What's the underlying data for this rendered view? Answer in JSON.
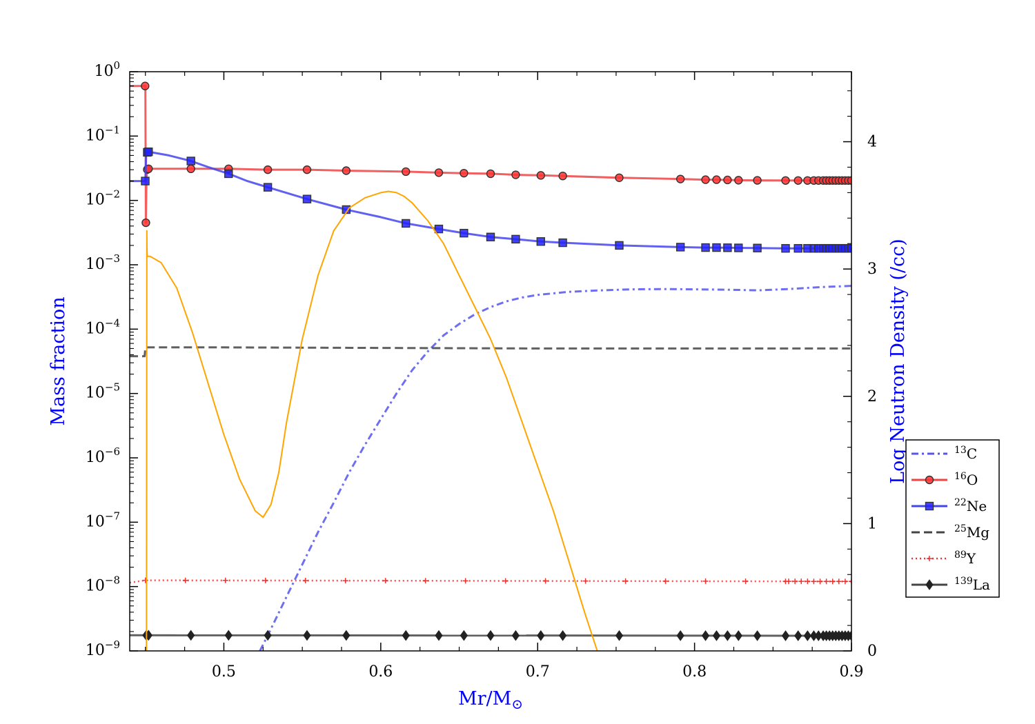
{
  "chart_data": {
    "type": "line",
    "xlabel": "Mr/M",
    "xlabel_symbol": "⊙",
    "ylabel": "Mass fraction",
    "y2label": "Log Neutron Density (/cc)",
    "xlim": [
      0.44,
      0.9
    ],
    "ylim": [
      1e-09,
      1
    ],
    "yscale": "log",
    "y2lim": [
      0,
      4.55
    ],
    "x_ticks": [
      "0.5",
      "0.6",
      "0.7",
      "0.8",
      "0.9"
    ],
    "y_ticks": [
      {
        "base": "10",
        "exp": "0"
      },
      {
        "base": "10",
        "exp": "−1"
      },
      {
        "base": "10",
        "exp": "−2"
      },
      {
        "base": "10",
        "exp": "−3"
      },
      {
        "base": "10",
        "exp": "−4"
      },
      {
        "base": "10",
        "exp": "−5"
      },
      {
        "base": "10",
        "exp": "−6"
      },
      {
        "base": "10",
        "exp": "−7"
      },
      {
        "base": "10",
        "exp": "−8"
      },
      {
        "base": "10",
        "exp": "−9"
      }
    ],
    "y2_ticks": [
      "0",
      "1",
      "2",
      "3",
      "4"
    ],
    "legend_position": "right",
    "colors": {
      "axis_title": "#0000ff",
      "c13": "#5555ee",
      "o16": "#ee4444",
      "ne22": "#4444ee",
      "mg25": "#444444",
      "y89": "#ee3333",
      "la139": "#444444",
      "neutron": "#ffa500"
    },
    "marker_x": [
      0.4512,
      0.452,
      0.479,
      0.503,
      0.528,
      0.553,
      0.578,
      0.616,
      0.637,
      0.653,
      0.67,
      0.686,
      0.702,
      0.716,
      0.752,
      0.791,
      0.807,
      0.814,
      0.821,
      0.828,
      0.84,
      0.858,
      0.866,
      0.872,
      0.876,
      0.879,
      0.882,
      0.884,
      0.886,
      0.888,
      0.89,
      0.892,
      0.894,
      0.896,
      0.898,
      0.9
    ],
    "series": [
      {
        "name": "13",
        "element": "C",
        "style": "dashdot",
        "axis": "left",
        "x": [
          0.523,
          0.53,
          0.54,
          0.55,
          0.56,
          0.57,
          0.58,
          0.59,
          0.6,
          0.61,
          0.62,
          0.63,
          0.64,
          0.65,
          0.66,
          0.67,
          0.68,
          0.69,
          0.7,
          0.72,
          0.74,
          0.76,
          0.78,
          0.8,
          0.82,
          0.84,
          0.86,
          0.88,
          0.9
        ],
        "y": [
          1e-09,
          2.2e-09,
          7e-09,
          2.2e-08,
          7e-08,
          2e-07,
          6e-07,
          1.6e-06,
          4e-06,
          1e-05,
          2.3e-05,
          4.5e-05,
          8e-05,
          0.00012,
          0.00017,
          0.00022,
          0.00027,
          0.00031,
          0.00034,
          0.00038,
          0.0004,
          0.000415,
          0.00042,
          0.000415,
          0.00041,
          0.0004,
          0.00042,
          0.00045,
          0.00047
        ]
      },
      {
        "name": "16",
        "element": "O",
        "style": "solid-circle",
        "axis": "left",
        "x": [
          0.44,
          0.4498,
          0.4499,
          0.45,
          0.4503,
          0.4507,
          0.451,
          0.452,
          0.479,
          0.503,
          0.528,
          0.553,
          0.578,
          0.616,
          0.637,
          0.653,
          0.67,
          0.686,
          0.702,
          0.716,
          0.752,
          0.791,
          0.807,
          0.814,
          0.821,
          0.828,
          0.84,
          0.858,
          0.866,
          0.872,
          0.876,
          0.879,
          0.882,
          0.884,
          0.886,
          0.888,
          0.89,
          0.892,
          0.894,
          0.896,
          0.898,
          0.9
        ],
        "y": [
          0.6,
          0.6,
          0.6,
          0.6,
          0.0045,
          0.02,
          0.03,
          0.031,
          0.031,
          0.031,
          0.03,
          0.03,
          0.029,
          0.028,
          0.027,
          0.0265,
          0.026,
          0.025,
          0.0245,
          0.024,
          0.0225,
          0.0215,
          0.021,
          0.021,
          0.0208,
          0.0206,
          0.0205,
          0.0204,
          0.0204,
          0.0204,
          0.0204,
          0.0204,
          0.0204,
          0.0204,
          0.0204,
          0.0204,
          0.0204,
          0.0204,
          0.0204,
          0.0204,
          0.0204,
          0.0204
        ]
      },
      {
        "name": "22",
        "element": "Ne",
        "style": "solid-square",
        "axis": "left",
        "x": [
          0.44,
          0.45,
          0.4505,
          0.452,
          0.465,
          0.479,
          0.49,
          0.503,
          0.515,
          0.528,
          0.553,
          0.578,
          0.6,
          0.616,
          0.637,
          0.653,
          0.67,
          0.686,
          0.702,
          0.716,
          0.752,
          0.791,
          0.807,
          0.814,
          0.821,
          0.828,
          0.84,
          0.858,
          0.866,
          0.872,
          0.876,
          0.879,
          0.882,
          0.884,
          0.886,
          0.888,
          0.89,
          0.892,
          0.894,
          0.896,
          0.898,
          0.9
        ],
        "y": [
          0.02,
          0.02,
          0.055,
          0.057,
          0.05,
          0.041,
          0.033,
          0.026,
          0.02,
          0.016,
          0.0105,
          0.0072,
          0.0055,
          0.0044,
          0.0036,
          0.0031,
          0.0027,
          0.0025,
          0.0023,
          0.0022,
          0.002,
          0.00188,
          0.00185,
          0.00185,
          0.00184,
          0.00183,
          0.00182,
          0.0018,
          0.0018,
          0.0018,
          0.0018,
          0.0018,
          0.0018,
          0.0018,
          0.0018,
          0.0018,
          0.0018,
          0.0018,
          0.0018,
          0.0018,
          0.0018,
          0.0018
        ]
      },
      {
        "name": "25",
        "element": "Mg",
        "style": "dashed",
        "axis": "left",
        "x": [
          0.44,
          0.4495,
          0.45,
          0.5,
          0.6,
          0.7,
          0.8,
          0.9
        ],
        "y": [
          3.8e-05,
          3.8e-05,
          5.2e-05,
          5.2e-05,
          5.1e-05,
          5e-05,
          5e-05,
          5e-05
        ]
      },
      {
        "name": "89",
        "element": "Y",
        "style": "dotted-plus",
        "axis": "left",
        "x": [
          0.44,
          0.45,
          0.9
        ],
        "y": [
          1.15e-08,
          1.25e-08,
          1.2e-08
        ]
      },
      {
        "name": "139",
        "element": "La",
        "style": "solid-diamond",
        "axis": "left",
        "x": [
          0.44,
          0.9
        ],
        "y": [
          1.75e-09,
          1.72e-09
        ]
      },
      {
        "name": "",
        "element": "",
        "style": "neutron",
        "axis": "right",
        "x": [
          0.4507,
          0.4509,
          0.451,
          0.4512,
          0.453,
          0.46,
          0.47,
          0.48,
          0.49,
          0.5,
          0.51,
          0.52,
          0.525,
          0.53,
          0.535,
          0.54,
          0.55,
          0.56,
          0.57,
          0.58,
          0.59,
          0.6,
          0.605,
          0.61,
          0.615,
          0.62,
          0.63,
          0.64,
          0.65,
          0.66,
          0.67,
          0.68,
          0.69,
          0.7,
          0.71,
          0.72,
          0.73,
          0.738
        ],
        "y": [
          0,
          3.3,
          3.15,
          3.1,
          3.1,
          3.05,
          2.85,
          2.5,
          2.1,
          1.7,
          1.35,
          1.1,
          1.05,
          1.15,
          1.4,
          1.8,
          2.45,
          2.95,
          3.3,
          3.48,
          3.56,
          3.6,
          3.61,
          3.6,
          3.57,
          3.52,
          3.38,
          3.2,
          2.95,
          2.7,
          2.45,
          2.15,
          1.8,
          1.45,
          1.1,
          0.7,
          0.3,
          0
        ]
      }
    ]
  }
}
